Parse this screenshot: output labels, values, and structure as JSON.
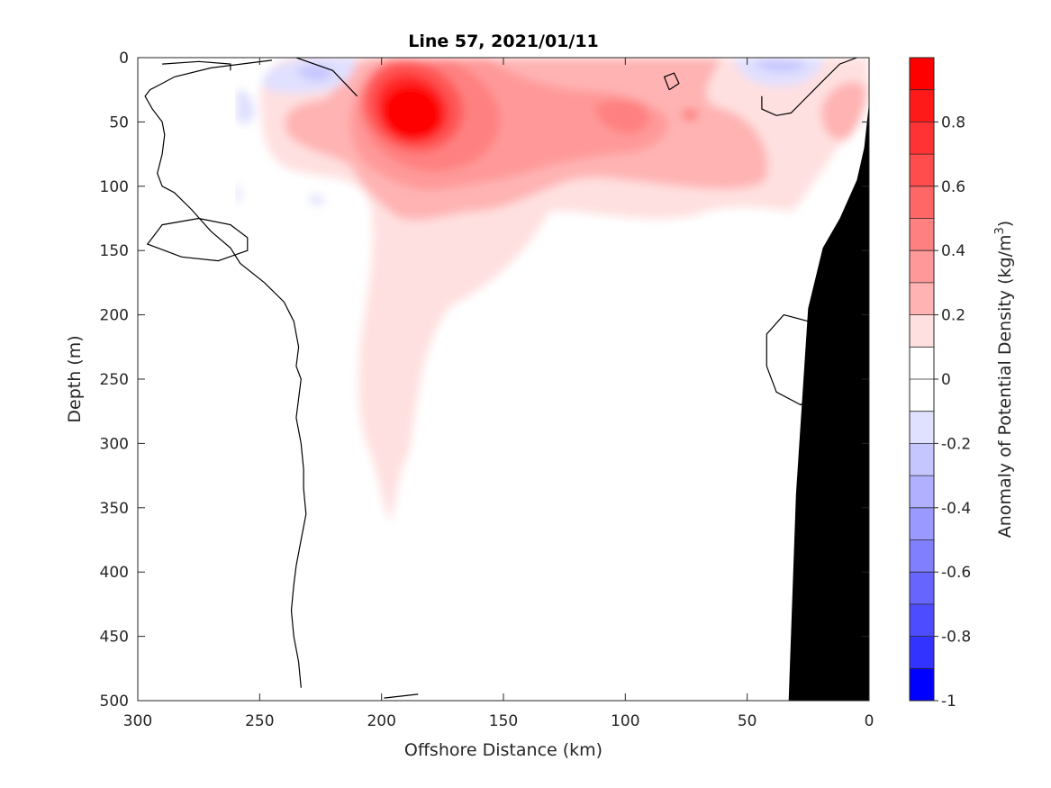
{
  "chart_data": {
    "type": "contour",
    "title": "Line 57, 2021/01/11",
    "xlabel": "Offshore Distance (km)",
    "ylabel": "Depth (m)",
    "colorbar_label": "Anomaly of Potential Density (kg/m",
    "colorbar_label_sup": "3",
    "colorbar_label_close": ")",
    "xlim": [
      300,
      0
    ],
    "x_reversed": true,
    "ylim": [
      0,
      500
    ],
    "y_reversed": true,
    "xticks": [
      300,
      250,
      200,
      150,
      100,
      50,
      0
    ],
    "yticks": [
      0,
      50,
      100,
      150,
      200,
      250,
      300,
      350,
      400,
      450,
      500
    ],
    "clim": [
      -1,
      1
    ],
    "colorbar_ticks": [
      0.8,
      0.6,
      0.4,
      0.2,
      0,
      -0.2,
      -0.4,
      -0.6,
      -0.8,
      -1
    ],
    "colorbar_levels": [
      {
        "from": 0.9,
        "to": 1.0,
        "color": "#ff0000"
      },
      {
        "from": 0.8,
        "to": 0.9,
        "color": "#ff1a1a"
      },
      {
        "from": 0.7,
        "to": 0.8,
        "color": "#ff3333"
      },
      {
        "from": 0.6,
        "to": 0.7,
        "color": "#ff4d4d"
      },
      {
        "from": 0.5,
        "to": 0.6,
        "color": "#ff6666"
      },
      {
        "from": 0.4,
        "to": 0.5,
        "color": "#ff8080"
      },
      {
        "from": 0.3,
        "to": 0.4,
        "color": "#ff9999"
      },
      {
        "from": 0.2,
        "to": 0.3,
        "color": "#ffb3b3"
      },
      {
        "from": 0.1,
        "to": 0.2,
        "color": "#ffe0e0"
      },
      {
        "from": 0.0,
        "to": 0.1,
        "color": "#ffffff"
      },
      {
        "from": -0.1,
        "to": 0.0,
        "color": "#ffffff"
      },
      {
        "from": -0.2,
        "to": -0.1,
        "color": "#e0e0ff"
      },
      {
        "from": -0.3,
        "to": -0.2,
        "color": "#c6c6ff"
      },
      {
        "from": -0.4,
        "to": -0.3,
        "color": "#b0b0ff"
      },
      {
        "from": -0.5,
        "to": -0.4,
        "color": "#9999ff"
      },
      {
        "from": -0.6,
        "to": -0.5,
        "color": "#8080ff"
      },
      {
        "from": -0.7,
        "to": -0.6,
        "color": "#6666ff"
      },
      {
        "from": -0.8,
        "to": -0.7,
        "color": "#4d4dff"
      },
      {
        "from": -0.9,
        "to": -0.8,
        "color": "#3333ff"
      },
      {
        "from": -1.0,
        "to": -0.9,
        "color": "#0000ff"
      }
    ],
    "grid": false,
    "colorbar_placement": "right",
    "bathymetry_color": "#000000",
    "bathymetry": [
      [
        33,
        500
      ],
      [
        30,
        340
      ],
      [
        25,
        195
      ],
      [
        19,
        148
      ],
      [
        12,
        125
      ],
      [
        5,
        95
      ],
      [
        2,
        70
      ],
      [
        0,
        35
      ],
      [
        0,
        500
      ]
    ],
    "zero_contours": [
      [
        [
          233,
          490
        ],
        [
          234,
          470
        ],
        [
          236,
          450
        ],
        [
          237,
          430
        ],
        [
          236,
          410
        ],
        [
          235,
          395
        ],
        [
          233,
          375
        ],
        [
          231,
          355
        ],
        [
          232,
          335
        ],
        [
          232,
          320
        ],
        [
          233,
          300
        ],
        [
          235,
          280
        ],
        [
          234,
          265
        ],
        [
          233,
          250
        ],
        [
          235,
          240
        ],
        [
          234,
          225
        ],
        [
          236,
          205
        ],
        [
          240,
          190
        ],
        [
          248,
          175
        ],
        [
          258,
          160
        ],
        [
          262,
          148
        ],
        [
          270,
          135
        ],
        [
          278,
          118
        ],
        [
          285,
          105
        ],
        [
          290,
          100
        ],
        [
          292,
          90
        ],
        [
          290,
          75
        ],
        [
          289,
          60
        ],
        [
          290,
          50
        ],
        [
          294,
          40
        ],
        [
          297,
          30
        ],
        [
          295,
          25
        ],
        [
          290,
          20
        ],
        [
          285,
          15
        ],
        [
          270,
          8
        ],
        [
          245,
          2
        ]
      ],
      [
        [
          262,
          10
        ],
        [
          262,
          5
        ],
        [
          275,
          3
        ],
        [
          290,
          5
        ]
      ],
      [
        [
          255,
          140
        ],
        [
          262,
          130
        ],
        [
          275,
          125
        ],
        [
          290,
          130
        ],
        [
          296,
          145
        ],
        [
          282,
          155
        ],
        [
          267,
          158
        ],
        [
          255,
          150
        ],
        [
          255,
          140
        ]
      ],
      [
        [
          210,
          30
        ],
        [
          220,
          10
        ],
        [
          235,
          0
        ]
      ],
      [
        [
          82,
          25
        ],
        [
          84,
          15
        ],
        [
          80,
          12
        ],
        [
          78,
          20
        ],
        [
          82,
          25
        ]
      ],
      [
        [
          44,
          30
        ],
        [
          44,
          40
        ],
        [
          38,
          45
        ],
        [
          32,
          43
        ],
        [
          20,
          20
        ],
        [
          12,
          5
        ],
        [
          5,
          0
        ]
      ],
      [
        [
          25,
          205
        ],
        [
          35,
          200
        ],
        [
          42,
          215
        ],
        [
          42,
          240
        ],
        [
          38,
          260
        ],
        [
          28,
          270
        ],
        [
          22,
          260
        ]
      ],
      [
        [
          199,
          498
        ],
        [
          185,
          495
        ]
      ]
    ]
  }
}
